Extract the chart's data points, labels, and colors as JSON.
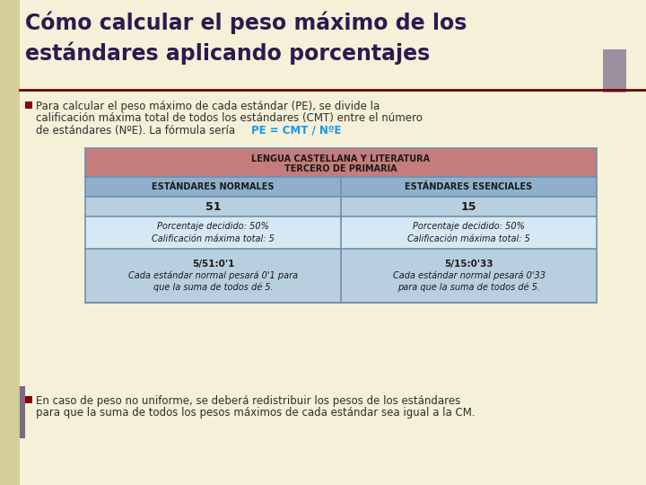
{
  "title_line1": "Cómo calcular el peso máximo de los",
  "title_line2": "estándares aplicando porcentajes",
  "title_color": "#2d1a4f",
  "bg_color": "#f5f0d8",
  "bullet1_lines": [
    "Para calcular el peso máximo de cada estándar (PE), se divide la",
    "calificación máxima total de todos los estándares (CMT) entre el número",
    "de estándares (NºE). La fórmula sería "
  ],
  "formula": "PE = CMT / NºE",
  "formula_color": "#1199ee",
  "bullet2_text_line1": "En caso de peso no uniforme, se deberá redistribuir los pesos de los estándares",
  "bullet2_text_line2": "para que la suma de todos los pesos máximos de cada estándar sea igual a la CM.",
  "text_color": "#2d2d2d",
  "bullet_color": "#8b0000",
  "accent_bar_color": "#9b8fa0",
  "left_bar_color": "#7a6b80",
  "separator_color": "#6b0000",
  "table": {
    "header_text_line1": "LENGUA CASTELLANA Y LITERATURA",
    "header_text_line2": "TERCERO DE PRIMARIA",
    "header_bg": "#c47c7c",
    "header_text_color": "#1a1a1a",
    "col1_header": "ESTÁNDARES NORMALES",
    "col2_header": "ESTÁNDARES ESENCIALES",
    "col_header_bg": "#8eb0cc",
    "col_header_text_color": "#1a1a1a",
    "row1_values": [
      "51",
      "15"
    ],
    "row1_bg": "#b8cfe0",
    "row2_col1_line1": "Porcentaje decidido: 50%",
    "row2_col1_line2": "Calificación máxima total: 5",
    "row2_col2_line1": "Porcentaje decidido: 50%",
    "row2_col2_line2": "Calificación máxima total: 5",
    "row2_bg": "#d6e8f4",
    "row3_col1_line1": "5/51:0'1",
    "row3_col1_line2": "Cada estándar normal pesará 0'1 para",
    "row3_col1_line3": "que la suma de todos dé 5.",
    "row3_col2_line1": "5/15:0'33",
    "row3_col2_line2": "Cada estándar normal pesará 0'33",
    "row3_col2_line3": "para que la suma de todos dé 5.",
    "row3_bg": "#b8cfe0",
    "text_color": "#1a1a1a",
    "border_color": "#7090aa"
  }
}
